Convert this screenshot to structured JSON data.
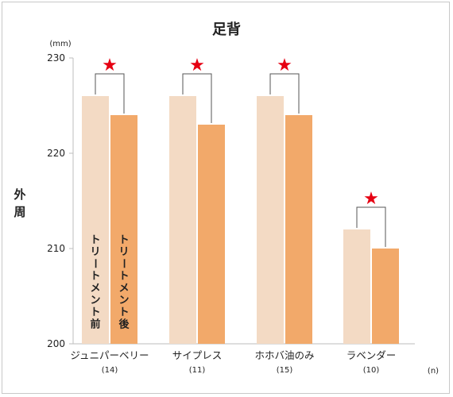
{
  "chart_data": {
    "type": "bar",
    "title": "足背",
    "ylabel": "外周",
    "yunit": "(mm)",
    "xunit": "(n)",
    "ylim": [
      200,
      230
    ],
    "yticks": [
      200,
      210,
      220,
      230
    ],
    "categories": [
      "ジュニパーベリー",
      "サイプレス",
      "ホホバ油のみ",
      "ラベンダー"
    ],
    "counts": [
      "(14)",
      "(11)",
      "(15)",
      "(10)"
    ],
    "series": [
      {
        "name": "トリートメント前",
        "values": [
          226,
          226,
          226,
          212
        ]
      },
      {
        "name": "トリートメント後",
        "values": [
          224,
          223,
          224,
          210
        ]
      }
    ],
    "significance": [
      "★",
      "★",
      "★",
      "★"
    ],
    "legend": "inside-first-bars",
    "grid": false,
    "colors": {
      "before": "#f3dac4",
      "after": "#f2a96a",
      "star": "#e60012",
      "axis": "#bdbdbd",
      "bracket": "#555555"
    }
  }
}
